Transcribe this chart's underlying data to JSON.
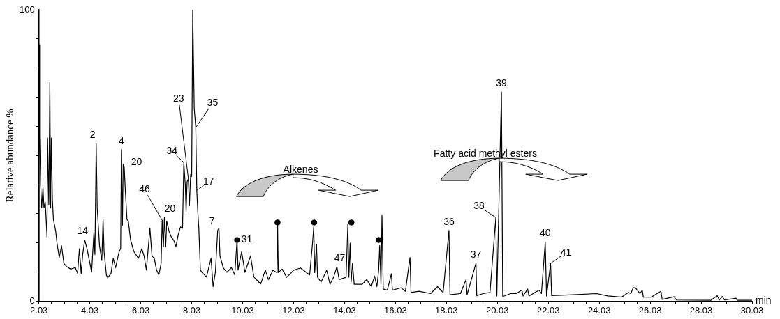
{
  "chart_data": {
    "type": "line",
    "xlabel": "min",
    "ylabel": "Relative abundance %",
    "xlim": [
      2.03,
      30.03
    ],
    "ylim": [
      0,
      100
    ],
    "xticks": [
      2.03,
      {
        "value": 2.53,
        "label": null
      },
      {
        "value": 3.03,
        "label": null
      },
      {
        "value": 3.53,
        "label": null
      },
      4.03,
      {
        "value": 4.53,
        "label": null
      },
      {
        "value": 5.03,
        "label": null
      },
      {
        "value": 5.53,
        "label": null
      },
      6.03,
      {
        "value": 6.53,
        "label": null
      },
      {
        "value": 7.03,
        "label": null
      },
      {
        "value": 7.53,
        "label": null
      },
      8.03,
      {
        "value": 8.53,
        "label": null
      },
      {
        "value": 9.03,
        "label": null
      },
      {
        "value": 9.53,
        "label": null
      },
      10.03,
      {
        "value": 10.53,
        "label": null
      },
      {
        "value": 11.03,
        "label": null
      },
      {
        "value": 11.53,
        "label": null
      },
      12.03,
      {
        "value": 12.53,
        "label": null
      },
      {
        "value": 13.03,
        "label": null
      },
      {
        "value": 13.53,
        "label": null
      },
      14.03,
      {
        "value": 14.53,
        "label": null
      },
      {
        "value": 15.03,
        "label": null
      },
      {
        "value": 15.53,
        "label": null
      },
      16.03,
      {
        "value": 16.53,
        "label": null
      },
      {
        "value": 17.03,
        "label": null
      },
      {
        "value": 17.53,
        "label": null
      },
      18.03,
      {
        "value": 18.53,
        "label": null
      },
      {
        "value": 19.03,
        "label": null
      },
      {
        "value": 19.53,
        "label": null
      },
      20.03,
      {
        "value": 20.53,
        "label": null
      },
      {
        "value": 21.03,
        "label": null
      },
      {
        "value": 21.53,
        "label": null
      },
      22.03,
      {
        "value": 22.53,
        "label": null
      },
      {
        "value": 23.03,
        "label": null
      },
      {
        "value": 23.53,
        "label": null
      },
      24.03,
      {
        "value": 24.53,
        "label": null
      },
      {
        "value": 25.03,
        "label": null
      },
      {
        "value": 25.53,
        "label": null
      },
      26.03,
      {
        "value": 26.53,
        "label": null
      },
      {
        "value": 27.03,
        "label": null
      },
      {
        "value": 27.53,
        "label": null
      },
      28.03,
      {
        "value": 28.53,
        "label": null
      },
      {
        "value": 29.03,
        "label": null
      },
      {
        "value": 29.53,
        "label": null
      },
      30.03
    ],
    "yticks": [
      0,
      {
        "value": 10,
        "label": null
      },
      {
        "value": 20,
        "label": null
      },
      {
        "value": 30,
        "label": null
      },
      {
        "value": 40,
        "label": null
      },
      {
        "value": 50,
        "label": null
      },
      {
        "value": 60,
        "label": null
      },
      {
        "value": 70,
        "label": null
      },
      {
        "value": 80,
        "label": null
      },
      {
        "value": 90,
        "label": null
      },
      100
    ],
    "grid": false,
    "legend": false,
    "series": [
      {
        "color": "#000000",
        "marker": "none",
        "x": [
          2.03,
          2.04,
          2.06,
          2.1,
          2.14,
          2.19,
          2.23,
          2.28,
          2.35,
          2.37,
          2.42,
          2.46,
          2.49,
          2.52,
          2.56,
          2.6,
          2.69,
          2.74,
          2.83,
          2.92,
          3.01,
          3.1,
          3.28,
          3.46,
          3.55,
          3.62,
          3.69,
          3.75,
          3.83,
          3.92,
          4.1,
          4.19,
          4.23,
          4.28,
          4.32,
          4.41,
          4.5,
          4.55,
          4.59,
          4.68,
          4.73,
          4.86,
          4.95,
          5.04,
          5.18,
          5.24,
          5.27,
          5.31,
          5.34,
          5.38,
          5.43,
          5.49,
          5.54,
          5.63,
          5.76,
          5.94,
          6.07,
          6.16,
          6.25,
          6.39,
          6.47,
          6.56,
          6.65,
          6.74,
          6.83,
          6.87,
          6.92,
          6.96,
          7.01,
          7.05,
          7.14,
          7.23,
          7.32,
          7.41,
          7.5,
          7.59,
          7.67,
          7.72,
          7.78,
          7.81,
          7.85,
          7.9,
          7.94,
          7.99,
          8.03,
          8.07,
          8.13,
          8.19,
          8.23,
          8.27,
          8.31,
          8.37,
          8.43,
          8.61,
          8.79,
          8.87,
          8.96,
          9.05,
          9.1,
          9.14,
          9.27,
          9.41,
          9.59,
          9.72,
          9.81,
          9.85,
          9.99,
          10.12,
          10.34,
          10.47,
          10.74,
          10.92,
          11.04,
          11.22,
          11.38,
          11.4,
          11.43,
          11.58,
          11.76,
          12.03,
          12.3,
          12.66,
          12.77,
          12.82,
          12.86,
          12.93,
          12.97,
          13.11,
          13.33,
          13.46,
          13.6,
          13.73,
          13.82,
          14.09,
          14.16,
          14.2,
          14.25,
          14.29,
          14.34,
          14.41,
          14.72,
          14.9,
          15.08,
          15.21,
          15.3,
          15.37,
          15.41,
          15.46,
          15.5,
          15.55,
          15.71,
          15.87,
          15.91,
          16.25,
          16.42,
          16.6,
          16.64,
          16.96,
          17.41,
          17.68,
          17.81,
          17.9,
          18.13,
          18.17,
          18.58,
          18.8,
          18.84,
          19.19,
          19.22,
          19.47,
          19.74,
          19.97,
          20.01,
          20.19,
          20.24,
          20.55,
          20.77,
          20.99,
          21.04,
          21.22,
          21.27,
          21.67,
          21.76,
          21.91,
          21.96,
          22.12,
          22.16,
          23.02,
          23.92,
          24.37,
          24.91,
          25.18,
          25.27,
          25.36,
          25.45,
          25.63,
          25.72,
          25.76,
          26.07,
          26.45,
          26.5,
          26.97,
          27.06,
          28.41,
          28.66,
          28.75,
          28.86,
          28.95,
          29.4,
          29.45,
          30.03
        ],
        "values": [
          0,
          88,
          57,
          40,
          32,
          39,
          32,
          34,
          22,
          56,
          33,
          75,
          32,
          56,
          35,
          28,
          24,
          20,
          15,
          19,
          13,
          12,
          11,
          11.5,
          9.5,
          18,
          9.5,
          16,
          21,
          18,
          10,
          23.5,
          16,
          54,
          32,
          19,
          14,
          28,
          17,
          9,
          8,
          9.5,
          14.7,
          11.5,
          17,
          18,
          52,
          26,
          47,
          46,
          37,
          28,
          27.5,
          21,
          17,
          14.7,
          18,
          15.5,
          10.7,
          25,
          15.5,
          14.7,
          10.7,
          9,
          13,
          27.5,
          18.7,
          28.7,
          18.7,
          27.5,
          24,
          22,
          21,
          18.7,
          22.7,
          25.5,
          25,
          47.6,
          39.6,
          30.7,
          41,
          42,
          32.7,
          43.6,
          42.8,
          100,
          66,
          59.6,
          38,
          30.7,
          25,
          10.7,
          9.9,
          8.3,
          14.7,
          5,
          9.9,
          24.3,
          25,
          15.5,
          11.5,
          9.9,
          11.5,
          9,
          21,
          10.7,
          17,
          9.9,
          15.5,
          8.3,
          5.9,
          10.7,
          7.4,
          10.6,
          9.8,
          27,
          9.8,
          11,
          8.2,
          10.6,
          11.4,
          9,
          19.5,
          25.5,
          9.8,
          19.5,
          8.2,
          6.6,
          10.6,
          5.8,
          8.2,
          11.8,
          7.4,
          8.2,
          26.3,
          8.2,
          19.9,
          6.6,
          13,
          5.8,
          5.8,
          7.4,
          5,
          8.6,
          5,
          10.6,
          19.1,
          5.8,
          29.5,
          4.2,
          3.8,
          9.4,
          3.8,
          4.6,
          3.4,
          15,
          3,
          3.4,
          2.6,
          5,
          3.8,
          3,
          24.3,
          2.2,
          2.6,
          7.4,
          2.2,
          13,
          1.9,
          2.6,
          3,
          28.7,
          1.8,
          71.8,
          1.6,
          2.6,
          2.6,
          3.8,
          1.8,
          4.2,
          1.8,
          3.8,
          2.6,
          20.3,
          1.8,
          13,
          1.9,
          2.2,
          2.6,
          1.8,
          1.4,
          3,
          2.6,
          4.6,
          4.6,
          2.6,
          3.8,
          1.4,
          1.4,
          3.4,
          0.6,
          1.5,
          0.4,
          0.3,
          1.9,
          0.4,
          1.6,
          0.4,
          1,
          0.3,
          0.3
        ]
      },
      {
        "type": "scatter",
        "color": "#000000",
        "marker": "circle",
        "x": [
          9.81,
          11.4,
          12.84,
          14.3,
          15.37
        ],
        "values": [
          21,
          27,
          27,
          27,
          21
        ]
      }
    ],
    "annotations": [
      {
        "text": "14",
        "x": 3.83,
        "y": 21
      },
      {
        "text": "2",
        "x": 4.28,
        "y": 54
      },
      {
        "text": "4",
        "x": 5.27,
        "y": 52
      },
      {
        "text": "20",
        "x": 5.34,
        "y": 47
      },
      {
        "text": "46",
        "x": 6.92,
        "y": 27
      },
      {
        "text": "20",
        "x": 6.96,
        "y": 28.7
      },
      {
        "text": "34",
        "x": 7.72,
        "y": 47.6
      },
      {
        "text": "23",
        "x": 7.9,
        "y": 42
      },
      {
        "text": "35",
        "x": 8.19,
        "y": 59.6
      },
      {
        "text": "17",
        "x": 8.23,
        "y": 38
      },
      {
        "text": "7",
        "x": 9.1,
        "y": 25
      },
      {
        "text": "31",
        "x": 9.81,
        "y": 21
      },
      {
        "text": "47",
        "x": 13.73,
        "y": 11.8
      },
      {
        "text": "36",
        "x": 18.13,
        "y": 24.3
      },
      {
        "text": "37",
        "x": 19.19,
        "y": 13
      },
      {
        "text": "38",
        "x": 19.97,
        "y": 28.7
      },
      {
        "text": "39",
        "x": 20.19,
        "y": 71.8
      },
      {
        "text": "40",
        "x": 21.91,
        "y": 20.3
      },
      {
        "text": "41",
        "x": 22.12,
        "y": 13
      },
      "Alkenes",
      "Fatty acid methyl esters"
    ]
  }
}
